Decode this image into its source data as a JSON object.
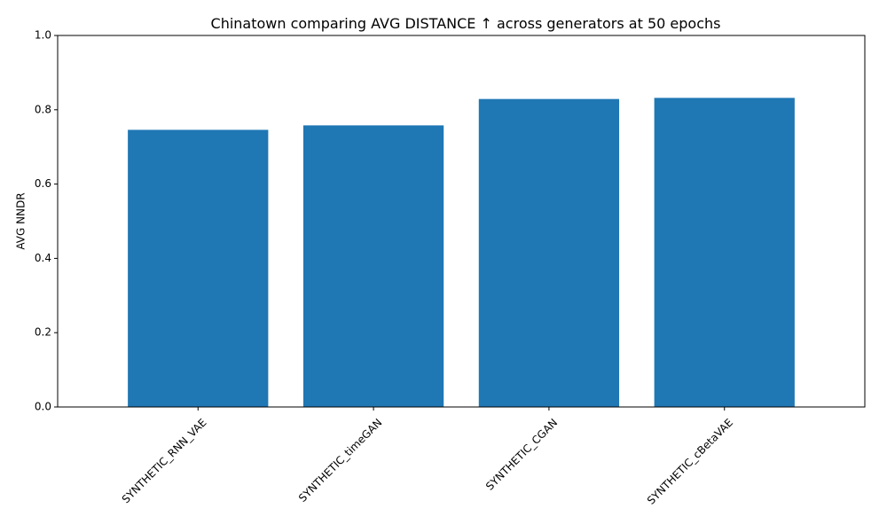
{
  "chart_data": {
    "type": "bar",
    "title": "Chinatown comparing AVG DISTANCE ↑ across generators at 50 epochs",
    "xlabel": "",
    "ylabel": "AVG NNDR",
    "categories": [
      "SYNTHETIC_RNN_VAE",
      "SYNTHETIC_timeGAN",
      "SYNTHETIC_CGAN",
      "SYNTHETIC_cBetaVAE"
    ],
    "values": [
      0.746,
      0.758,
      0.829,
      0.832
    ],
    "ylim": [
      0,
      1.0
    ],
    "yticks": [
      "0.0",
      "0.2",
      "0.4",
      "0.6",
      "0.8",
      "1.0"
    ],
    "grid": false,
    "legend": "none",
    "bar_color": "#1f77b4"
  }
}
